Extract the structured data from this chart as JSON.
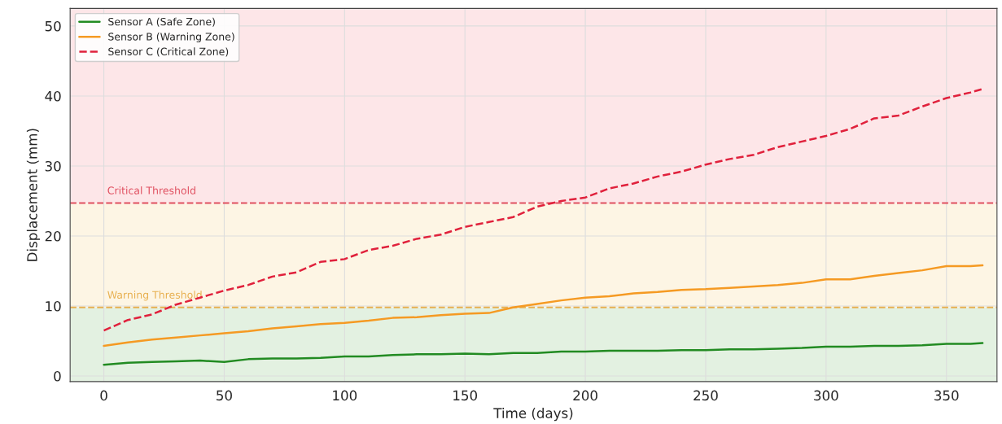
{
  "chart_data": {
    "type": "line",
    "xlabel": "Time (days)",
    "ylabel": "Displacement (mm)",
    "x": [
      0,
      10,
      20,
      30,
      40,
      50,
      60,
      70,
      80,
      90,
      100,
      110,
      120,
      130,
      140,
      150,
      160,
      170,
      180,
      190,
      200,
      210,
      220,
      230,
      240,
      250,
      260,
      270,
      280,
      290,
      300,
      310,
      320,
      330,
      340,
      350,
      360,
      365
    ],
    "series": [
      {
        "name": "Sensor A (Safe Zone)",
        "color": "#228b22",
        "line_style": "solid",
        "values": [
          1.6,
          1.9,
          2.0,
          2.1,
          2.2,
          2.0,
          2.4,
          2.5,
          2.5,
          2.6,
          2.8,
          2.8,
          3.0,
          3.1,
          3.1,
          3.2,
          3.1,
          3.3,
          3.3,
          3.5,
          3.5,
          3.6,
          3.6,
          3.6,
          3.7,
          3.7,
          3.8,
          3.8,
          3.9,
          4.0,
          4.2,
          4.2,
          4.3,
          4.3,
          4.4,
          4.6,
          4.6,
          4.7
        ]
      },
      {
        "name": "Sensor B (Warning Zone)",
        "color": "#f59a23",
        "line_style": "solid",
        "values": [
          4.3,
          4.8,
          5.2,
          5.5,
          5.8,
          6.1,
          6.4,
          6.8,
          7.1,
          7.4,
          7.6,
          7.9,
          8.3,
          8.4,
          8.7,
          8.9,
          9.0,
          9.8,
          10.3,
          10.8,
          11.2,
          11.4,
          11.8,
          12.0,
          12.3,
          12.4,
          12.6,
          12.8,
          13.0,
          13.3,
          13.8,
          13.8,
          14.3,
          14.7,
          15.1,
          15.7,
          15.7,
          15.8
        ]
      },
      {
        "name": "Sensor C (Critical Zone)",
        "color": "#e0213c",
        "line_style": "dashed",
        "values": [
          6.5,
          8.0,
          8.8,
          10.2,
          11.2,
          12.2,
          13.0,
          14.2,
          14.8,
          16.3,
          16.7,
          18.0,
          18.6,
          19.6,
          20.2,
          21.3,
          22.0,
          22.7,
          24.2,
          25.0,
          25.5,
          26.8,
          27.5,
          28.5,
          29.2,
          30.2,
          31.0,
          31.6,
          32.7,
          33.5,
          34.3,
          35.3,
          36.8,
          37.2,
          38.5,
          39.7,
          40.5,
          41.0
        ]
      }
    ],
    "xlim": [
      -14,
      371
    ],
    "ylim": [
      -0.8,
      52.5
    ],
    "xticks": [
      0,
      50,
      100,
      150,
      200,
      250,
      300,
      350
    ],
    "yticks": [
      0,
      10,
      20,
      30,
      40,
      50
    ],
    "ref_lines": [
      {
        "axis": "y",
        "value": 24.7,
        "label": "Critical Threshold",
        "color": "#e05060",
        "line_style": "dashed"
      },
      {
        "axis": "y",
        "value": 9.8,
        "label": "Warning Threshold",
        "color": "#e8b050",
        "line_style": "dashed"
      }
    ],
    "bands": [
      {
        "axis": "y",
        "from": -0.8,
        "to": 9.8,
        "color": "#e3f1e1"
      },
      {
        "axis": "y",
        "from": 9.8,
        "to": 24.7,
        "color": "#fdf5e4"
      },
      {
        "axis": "y",
        "from": 24.7,
        "to": 52.5,
        "color": "#fde6e8"
      }
    ],
    "grid": true,
    "legend": "top left"
  }
}
